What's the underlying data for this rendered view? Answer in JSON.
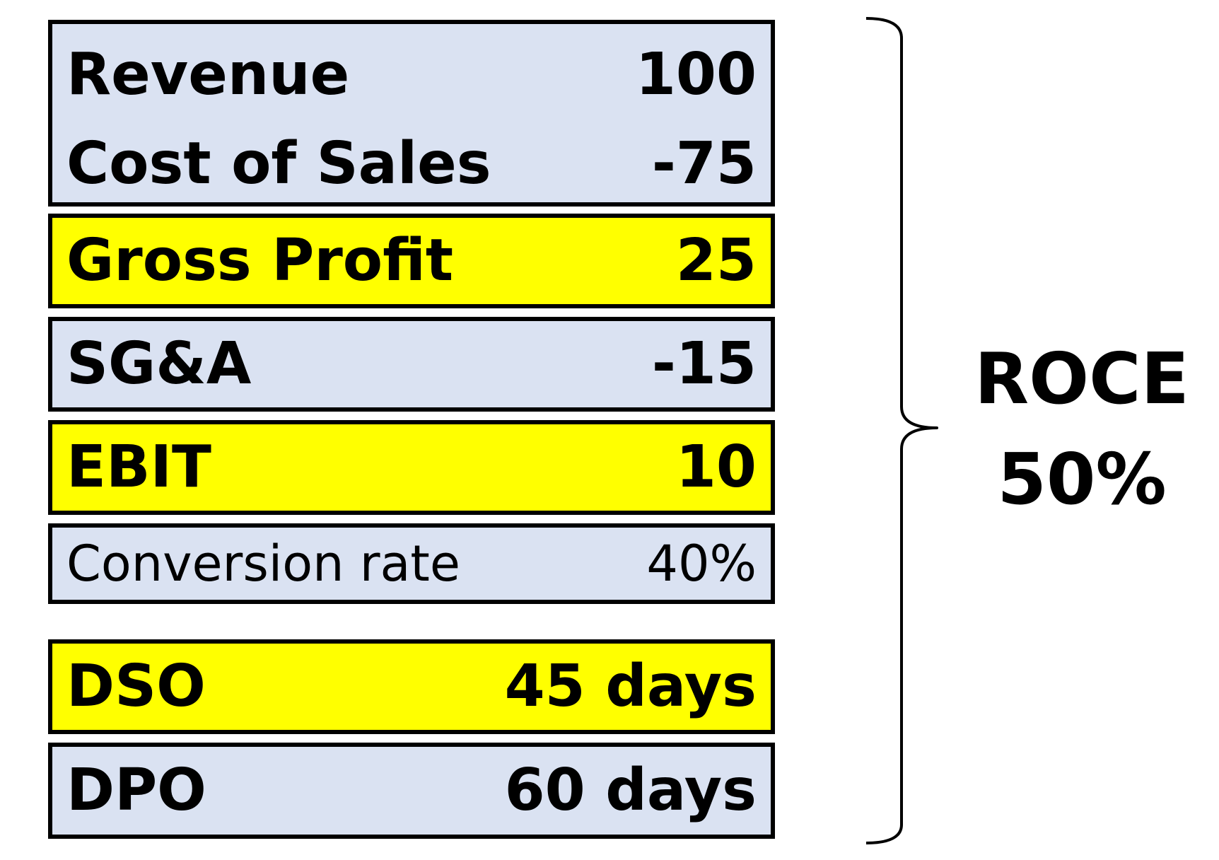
{
  "rows": {
    "revenue": {
      "label": "Revenue",
      "value": "100"
    },
    "cost_of_sales": {
      "label": "Cost of Sales",
      "value": "-75"
    },
    "gross_profit": {
      "label": "Gross Profit",
      "value": "25"
    },
    "sga": {
      "label": "SG&A",
      "value": "-15"
    },
    "ebit": {
      "label": "EBIT",
      "value": "10"
    },
    "conversion_rate": {
      "label": "Conversion rate",
      "value": "40%"
    },
    "dso": {
      "label": "DSO",
      "value": "45 days"
    },
    "dpo": {
      "label": "DPO",
      "value": "60 days"
    }
  },
  "summary": {
    "label": "ROCE",
    "value": "50%"
  },
  "colors": {
    "blue_fill": "#dae2f2",
    "yellow_fill": "#ffff00",
    "border": "#000000"
  }
}
